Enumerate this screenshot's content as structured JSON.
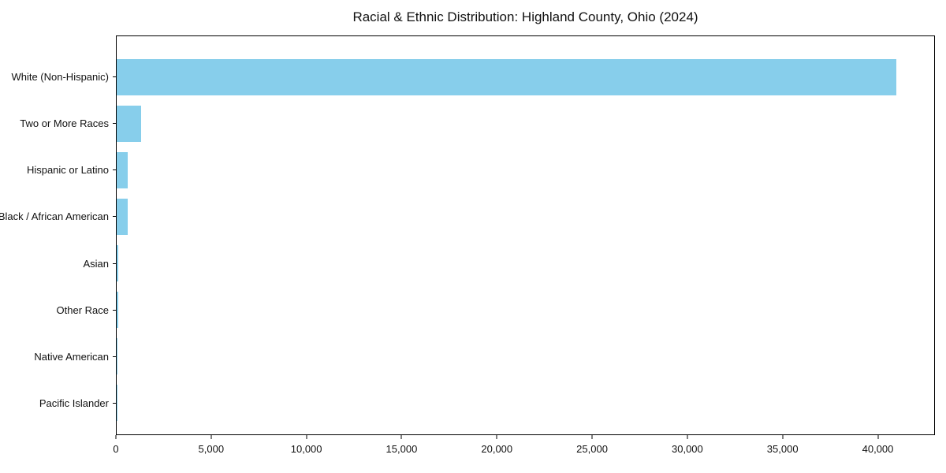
{
  "figure": {
    "background": "#ffffff",
    "text_color": "#111111",
    "spine_color": "#000000"
  },
  "chart_data": {
    "type": "bar",
    "orientation": "horizontal",
    "title": "Racial & Ethnic Distribution: Highland County, Ohio (2024)",
    "categories": [
      "White (Non-Hispanic)",
      "Two or More Races",
      "Hispanic or Latino",
      "Black / African American",
      "Asian",
      "Other Race",
      "Native American",
      "Pacific Islander"
    ],
    "values": [
      41000,
      1300,
      590,
      570,
      100,
      75,
      40,
      10
    ],
    "bar_color": "#87CEEB",
    "xlabel": "",
    "ylabel": "",
    "xlim": [
      0,
      43000
    ],
    "x_ticks": [
      0,
      5000,
      10000,
      15000,
      20000,
      25000,
      30000,
      35000,
      40000
    ],
    "x_tick_labels": [
      "0",
      "5,000",
      "10,000",
      "15,000",
      "20,000",
      "25,000",
      "30,000",
      "35,000",
      "40,000"
    ],
    "grid": false,
    "legend": null,
    "bars_sorted": "descending, largest at top"
  }
}
